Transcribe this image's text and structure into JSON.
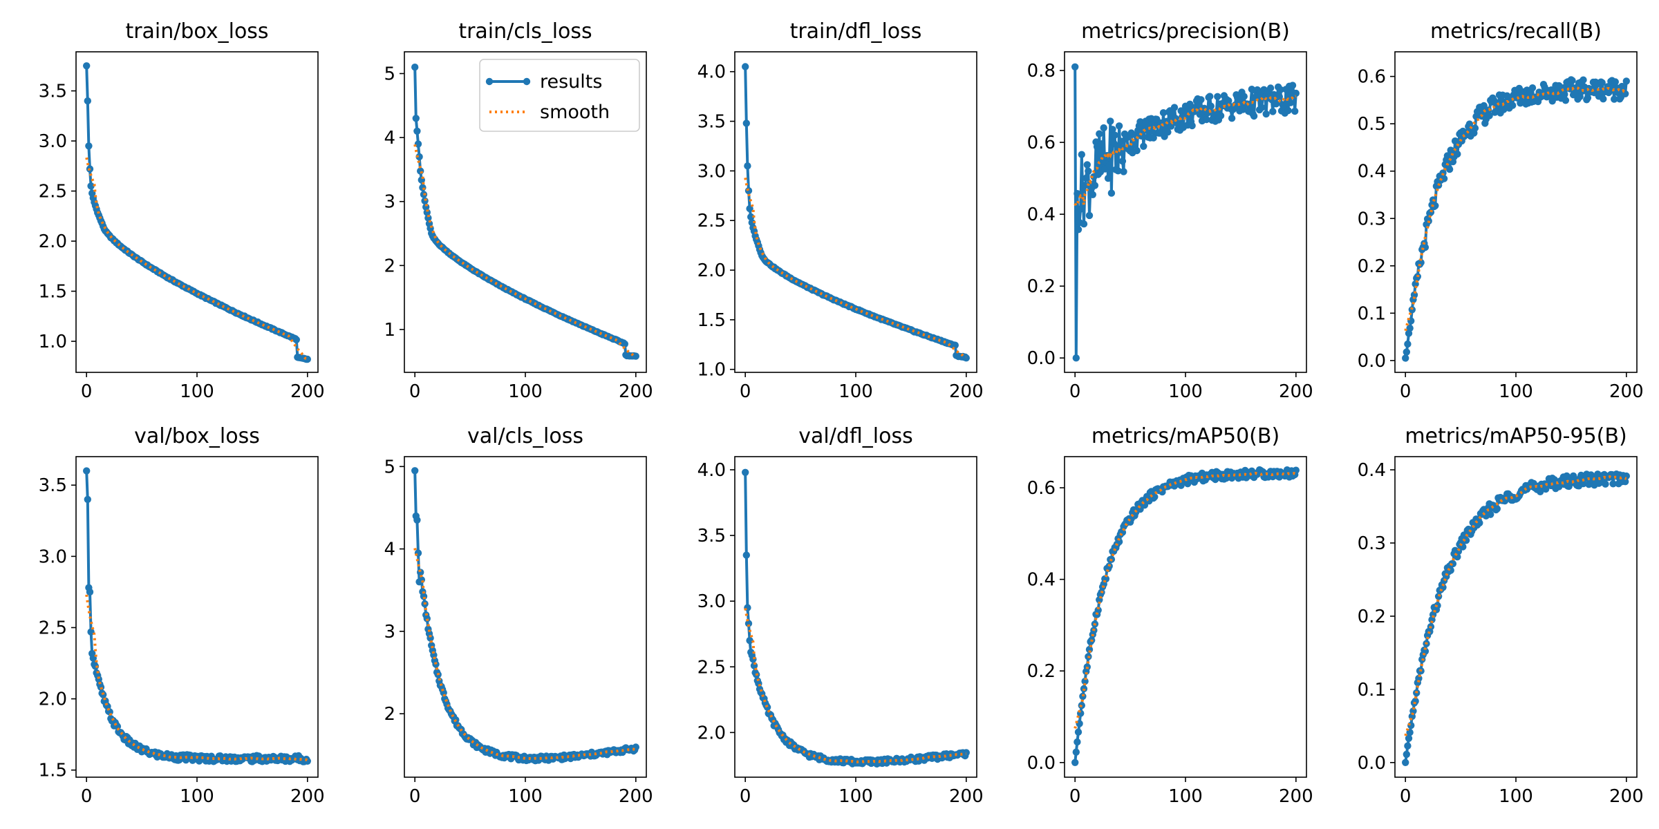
{
  "legend": {
    "results": "results",
    "smooth": "smooth",
    "placement": "upper right of panel 2"
  },
  "colors": {
    "results": "#1f77b4",
    "smooth": "#ff7f0e",
    "axes": "#000000"
  },
  "chart_data": [
    {
      "type": "line",
      "title": "train/box_loss",
      "xlim": [
        -9.5,
        209.5
      ],
      "ylim": [
        0.69,
        3.89
      ],
      "xticks": [
        0,
        100,
        200
      ],
      "yticks": [
        1.0,
        1.5,
        2.0,
        2.5,
        3.0,
        3.5
      ],
      "shape": "decay",
      "y0": 3.75,
      "y1": 3.4,
      "y2": 2.95,
      "y3": 2.72,
      "y4": 2.55,
      "yk": 2.15,
      "k": 15,
      "yend": 1.02,
      "drop": 0.82,
      "noise": 0.005,
      "series": [
        {
          "name": "results"
        },
        {
          "name": "smooth"
        }
      ]
    },
    {
      "type": "line",
      "title": "train/cls_loss",
      "xlim": [
        -9.5,
        209.5
      ],
      "ylim": [
        0.33,
        5.34
      ],
      "xticks": [
        0,
        100,
        200
      ],
      "yticks": [
        1,
        2,
        3,
        4,
        5
      ],
      "shape": "decay",
      "y0": 5.1,
      "y1": 4.3,
      "y2": 4.1,
      "y3": 3.9,
      "y4": 3.7,
      "yk": 2.5,
      "k": 15,
      "yend": 0.78,
      "drop": 0.58,
      "noise": 0.006,
      "series": [
        {
          "name": "results"
        },
        {
          "name": "smooth"
        }
      ]
    },
    {
      "type": "line",
      "title": "train/dfl_loss",
      "xlim": [
        -9.5,
        209.5
      ],
      "ylim": [
        0.97,
        4.2
      ],
      "xticks": [
        0,
        100,
        200
      ],
      "yticks": [
        1.0,
        1.5,
        2.0,
        2.5,
        3.0,
        3.5,
        4.0
      ],
      "shape": "decay",
      "y0": 4.05,
      "y1": 3.48,
      "y2": 3.05,
      "y3": 2.8,
      "y4": 2.62,
      "yk": 2.15,
      "k": 15,
      "yend": 1.24,
      "drop": 1.12,
      "noise": 0.005,
      "series": [
        {
          "name": "results"
        },
        {
          "name": "smooth"
        }
      ]
    },
    {
      "type": "line",
      "title": "metrics/precision(B)",
      "xlim": [
        -9.5,
        209.5
      ],
      "ylim": [
        -0.04,
        0.852
      ],
      "xticks": [
        0,
        100,
        200
      ],
      "yticks": [
        0.0,
        0.2,
        0.4,
        0.6,
        0.8
      ],
      "shape": "precision",
      "y0": 0.81,
      "y1": 0.0,
      "start": 0.44,
      "end": 0.73,
      "tau": 60,
      "noise": 0.04,
      "series": [
        {
          "name": "results"
        },
        {
          "name": "smooth"
        }
      ]
    },
    {
      "type": "line",
      "title": "metrics/recall(B)",
      "xlim": [
        -9.5,
        209.5
      ],
      "ylim": [
        -0.025,
        0.652
      ],
      "xticks": [
        0,
        100,
        200
      ],
      "yticks": [
        0.0,
        0.1,
        0.2,
        0.3,
        0.4,
        0.5,
        0.6
      ],
      "shape": "rise",
      "y0": 0.005,
      "max": 0.575,
      "tau": 30,
      "noise": 0.022,
      "series": [
        {
          "name": "results"
        },
        {
          "name": "smooth"
        }
      ]
    },
    {
      "type": "line",
      "title": "val/box_loss",
      "xlim": [
        -9.5,
        209.5
      ],
      "ylim": [
        1.45,
        3.7
      ],
      "xticks": [
        0,
        100,
        200
      ],
      "yticks": [
        1.5,
        2.0,
        2.5,
        3.0,
        3.5
      ],
      "shape": "vdecay",
      "y0": 3.6,
      "y1": 3.4,
      "y2": 2.78,
      "y3": 2.75,
      "y4": 2.47,
      "base": 1.58,
      "amp": 0.8,
      "tau": 18,
      "lift": 0.0,
      "noise": 0.022,
      "series": [
        {
          "name": "results"
        },
        {
          "name": "smooth"
        }
      ]
    },
    {
      "type": "line",
      "title": "val/cls_loss",
      "xlim": [
        -9.5,
        209.5
      ],
      "ylim": [
        1.23,
        5.12
      ],
      "xticks": [
        0,
        100,
        200
      ],
      "yticks": [
        2,
        3,
        4,
        5
      ],
      "shape": "vdecay",
      "y0": 4.95,
      "y1": 4.4,
      "y2": 4.35,
      "y3": 3.95,
      "y4": 3.6,
      "base": 1.44,
      "amp": 2.4,
      "tau": 20,
      "lift": 0.14,
      "noise": 0.028,
      "series": [
        {
          "name": "results"
        },
        {
          "name": "smooth"
        }
      ]
    },
    {
      "type": "line",
      "title": "val/dfl_loss",
      "xlim": [
        -9.5,
        209.5
      ],
      "ylim": [
        1.66,
        4.1
      ],
      "xticks": [
        0,
        100,
        200
      ],
      "yticks": [
        2.0,
        2.5,
        3.0,
        3.5,
        4.0
      ],
      "shape": "vdecay",
      "y0": 3.98,
      "y1": 3.35,
      "y2": 2.95,
      "y3": 2.83,
      "y4": 2.7,
      "base": 1.77,
      "amp": 0.9,
      "tau": 20,
      "lift": 0.07,
      "noise": 0.018,
      "series": [
        {
          "name": "results"
        },
        {
          "name": "smooth"
        }
      ]
    },
    {
      "type": "line",
      "title": "metrics/mAP50(B)",
      "xlim": [
        -9.5,
        209.5
      ],
      "ylim": [
        -0.032,
        0.668
      ],
      "xticks": [
        0,
        100,
        200
      ],
      "yticks": [
        0.0,
        0.2,
        0.4,
        0.6
      ],
      "shape": "rise",
      "y0": 0.0,
      "max": 0.632,
      "tau": 27,
      "noise": 0.009,
      "series": [
        {
          "name": "results"
        },
        {
          "name": "smooth"
        }
      ]
    },
    {
      "type": "line",
      "title": "metrics/mAP50-95(B)",
      "xlim": [
        -9.5,
        209.5
      ],
      "ylim": [
        -0.02,
        0.418
      ],
      "xticks": [
        0,
        100,
        200
      ],
      "yticks": [
        0.0,
        0.1,
        0.2,
        0.3,
        0.4
      ],
      "shape": "rise",
      "y0": 0.0,
      "max": 0.39,
      "tau": 35,
      "noise": 0.008,
      "series": [
        {
          "name": "results"
        },
        {
          "name": "smooth"
        }
      ]
    }
  ]
}
